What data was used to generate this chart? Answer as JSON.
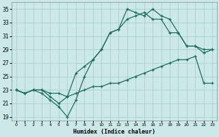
{
  "background_color": "#cce8e8",
  "grid_color": "#b8d8d8",
  "line_color": "#1a6b5e",
  "xlabel": "Humidex (Indice chaleur)",
  "xlim": [
    -0.5,
    23.5
  ],
  "ylim": [
    18.5,
    36
  ],
  "yticks": [
    19,
    21,
    23,
    25,
    27,
    29,
    31,
    33,
    35
  ],
  "xticks": [
    0,
    1,
    2,
    3,
    4,
    5,
    6,
    7,
    8,
    9,
    10,
    11,
    12,
    13,
    14,
    15,
    16,
    17,
    18,
    19,
    20,
    21,
    22,
    23
  ],
  "line_min_x": [
    0,
    1,
    2,
    3,
    4,
    5,
    6,
    7,
    8,
    9,
    10,
    11,
    12,
    13,
    14,
    15,
    16,
    17,
    18,
    19,
    20,
    21,
    22,
    23
  ],
  "line_min_y": [
    23.0,
    22.5,
    23.0,
    23.0,
    22.5,
    22.5,
    22.0,
    22.5,
    23.0,
    23.5,
    23.5,
    24.0,
    24.0,
    24.5,
    25.0,
    25.5,
    26.0,
    26.5,
    27.0,
    27.5,
    27.5,
    28.0,
    24.0,
    24.0
  ],
  "line_max_x": [
    0,
    1,
    2,
    3,
    4,
    5,
    6,
    7,
    8,
    9,
    10,
    11,
    12,
    13,
    14,
    15,
    16,
    17,
    18,
    19,
    20,
    21,
    22,
    23
  ],
  "line_max_y": [
    23.0,
    22.5,
    23.0,
    22.5,
    21.5,
    20.5,
    19.0,
    21.5,
    25.0,
    27.5,
    29.0,
    31.5,
    32.0,
    35.0,
    34.5,
    34.0,
    35.0,
    34.0,
    33.5,
    31.5,
    29.5,
    29.5,
    29.0,
    29.0
  ],
  "line_avg_x": [
    0,
    1,
    2,
    3,
    4,
    5,
    6,
    7,
    8,
    9,
    10,
    11,
    12,
    13,
    14,
    15,
    16,
    17,
    18,
    19,
    20,
    21,
    22,
    23
  ],
  "line_avg_y": [
    23.0,
    22.5,
    23.0,
    23.0,
    22.0,
    21.0,
    22.0,
    25.5,
    26.5,
    27.5,
    29.0,
    31.5,
    32.0,
    33.5,
    34.0,
    34.5,
    33.5,
    33.5,
    31.5,
    31.5,
    29.5,
    29.5,
    28.5,
    29.0
  ]
}
